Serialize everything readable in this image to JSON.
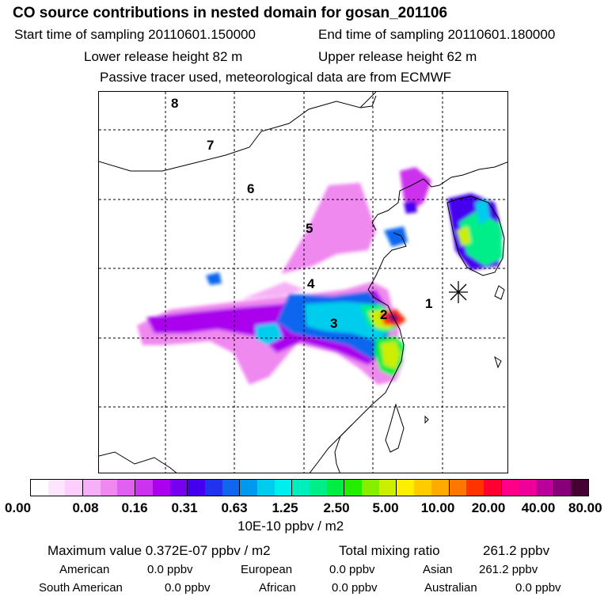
{
  "header": {
    "title": "CO  source contributions in nested domain for gosan_201106",
    "start_label": "Start time of sampling 20110601.150000",
    "end_label": "End time of sampling 20110601.180000",
    "lower_release": "Lower release height   82 m",
    "upper_release": "Upper release height   62 m",
    "tracer_note": "Passive tracer used, meteorological data are from ECMWF"
  },
  "map": {
    "region_labels": [
      "1",
      "2",
      "3",
      "4",
      "5",
      "6",
      "7",
      "8"
    ],
    "receptor_marker": "asterisk-marker"
  },
  "colorbar": {
    "colors": [
      "#ffffff",
      "#fde6fd",
      "#fbcefb",
      "#f7b0f7",
      "#ef88ef",
      "#e060ef",
      "#cc33ee",
      "#aa00ee",
      "#7700ee",
      "#4400ee",
      "#2233ee",
      "#1166ee",
      "#0099ee",
      "#00ccee",
      "#00eeee",
      "#00eebb",
      "#00ee88",
      "#00ee44",
      "#22ee00",
      "#88ee00",
      "#ccee00",
      "#ffee00",
      "#ffcc00",
      "#ffaa00",
      "#ff7700",
      "#ff3300",
      "#ff0033",
      "#ff0088",
      "#ee0099",
      "#bb0099",
      "#880077",
      "#440033"
    ],
    "tick_labels": [
      "0.00",
      "0.08",
      "0.16",
      "0.31",
      "0.63",
      "1.25",
      "2.50",
      "5.00",
      "10.00",
      "20.00",
      "40.00",
      "80.00"
    ],
    "unit_label": "10E-10 ppbv / m2"
  },
  "summary": {
    "max_value": "Maximum value  0.372E-07 ppbv / m2",
    "total_mixing": "Total mixing ratio",
    "total_value": "261.2 ppbv",
    "american_label": "American",
    "american_value": "0.0 ppbv",
    "european_label": "European",
    "european_value": "0.0 ppbv",
    "asian_label": "Asian",
    "asian_value": "261.2 ppbv",
    "south_american_label": "South American",
    "south_american_value": "0.0 ppbv",
    "african_label": "African",
    "african_value": "0.0 ppbv",
    "australian_label": "Australian",
    "australian_value": "0.0 ppbv"
  }
}
